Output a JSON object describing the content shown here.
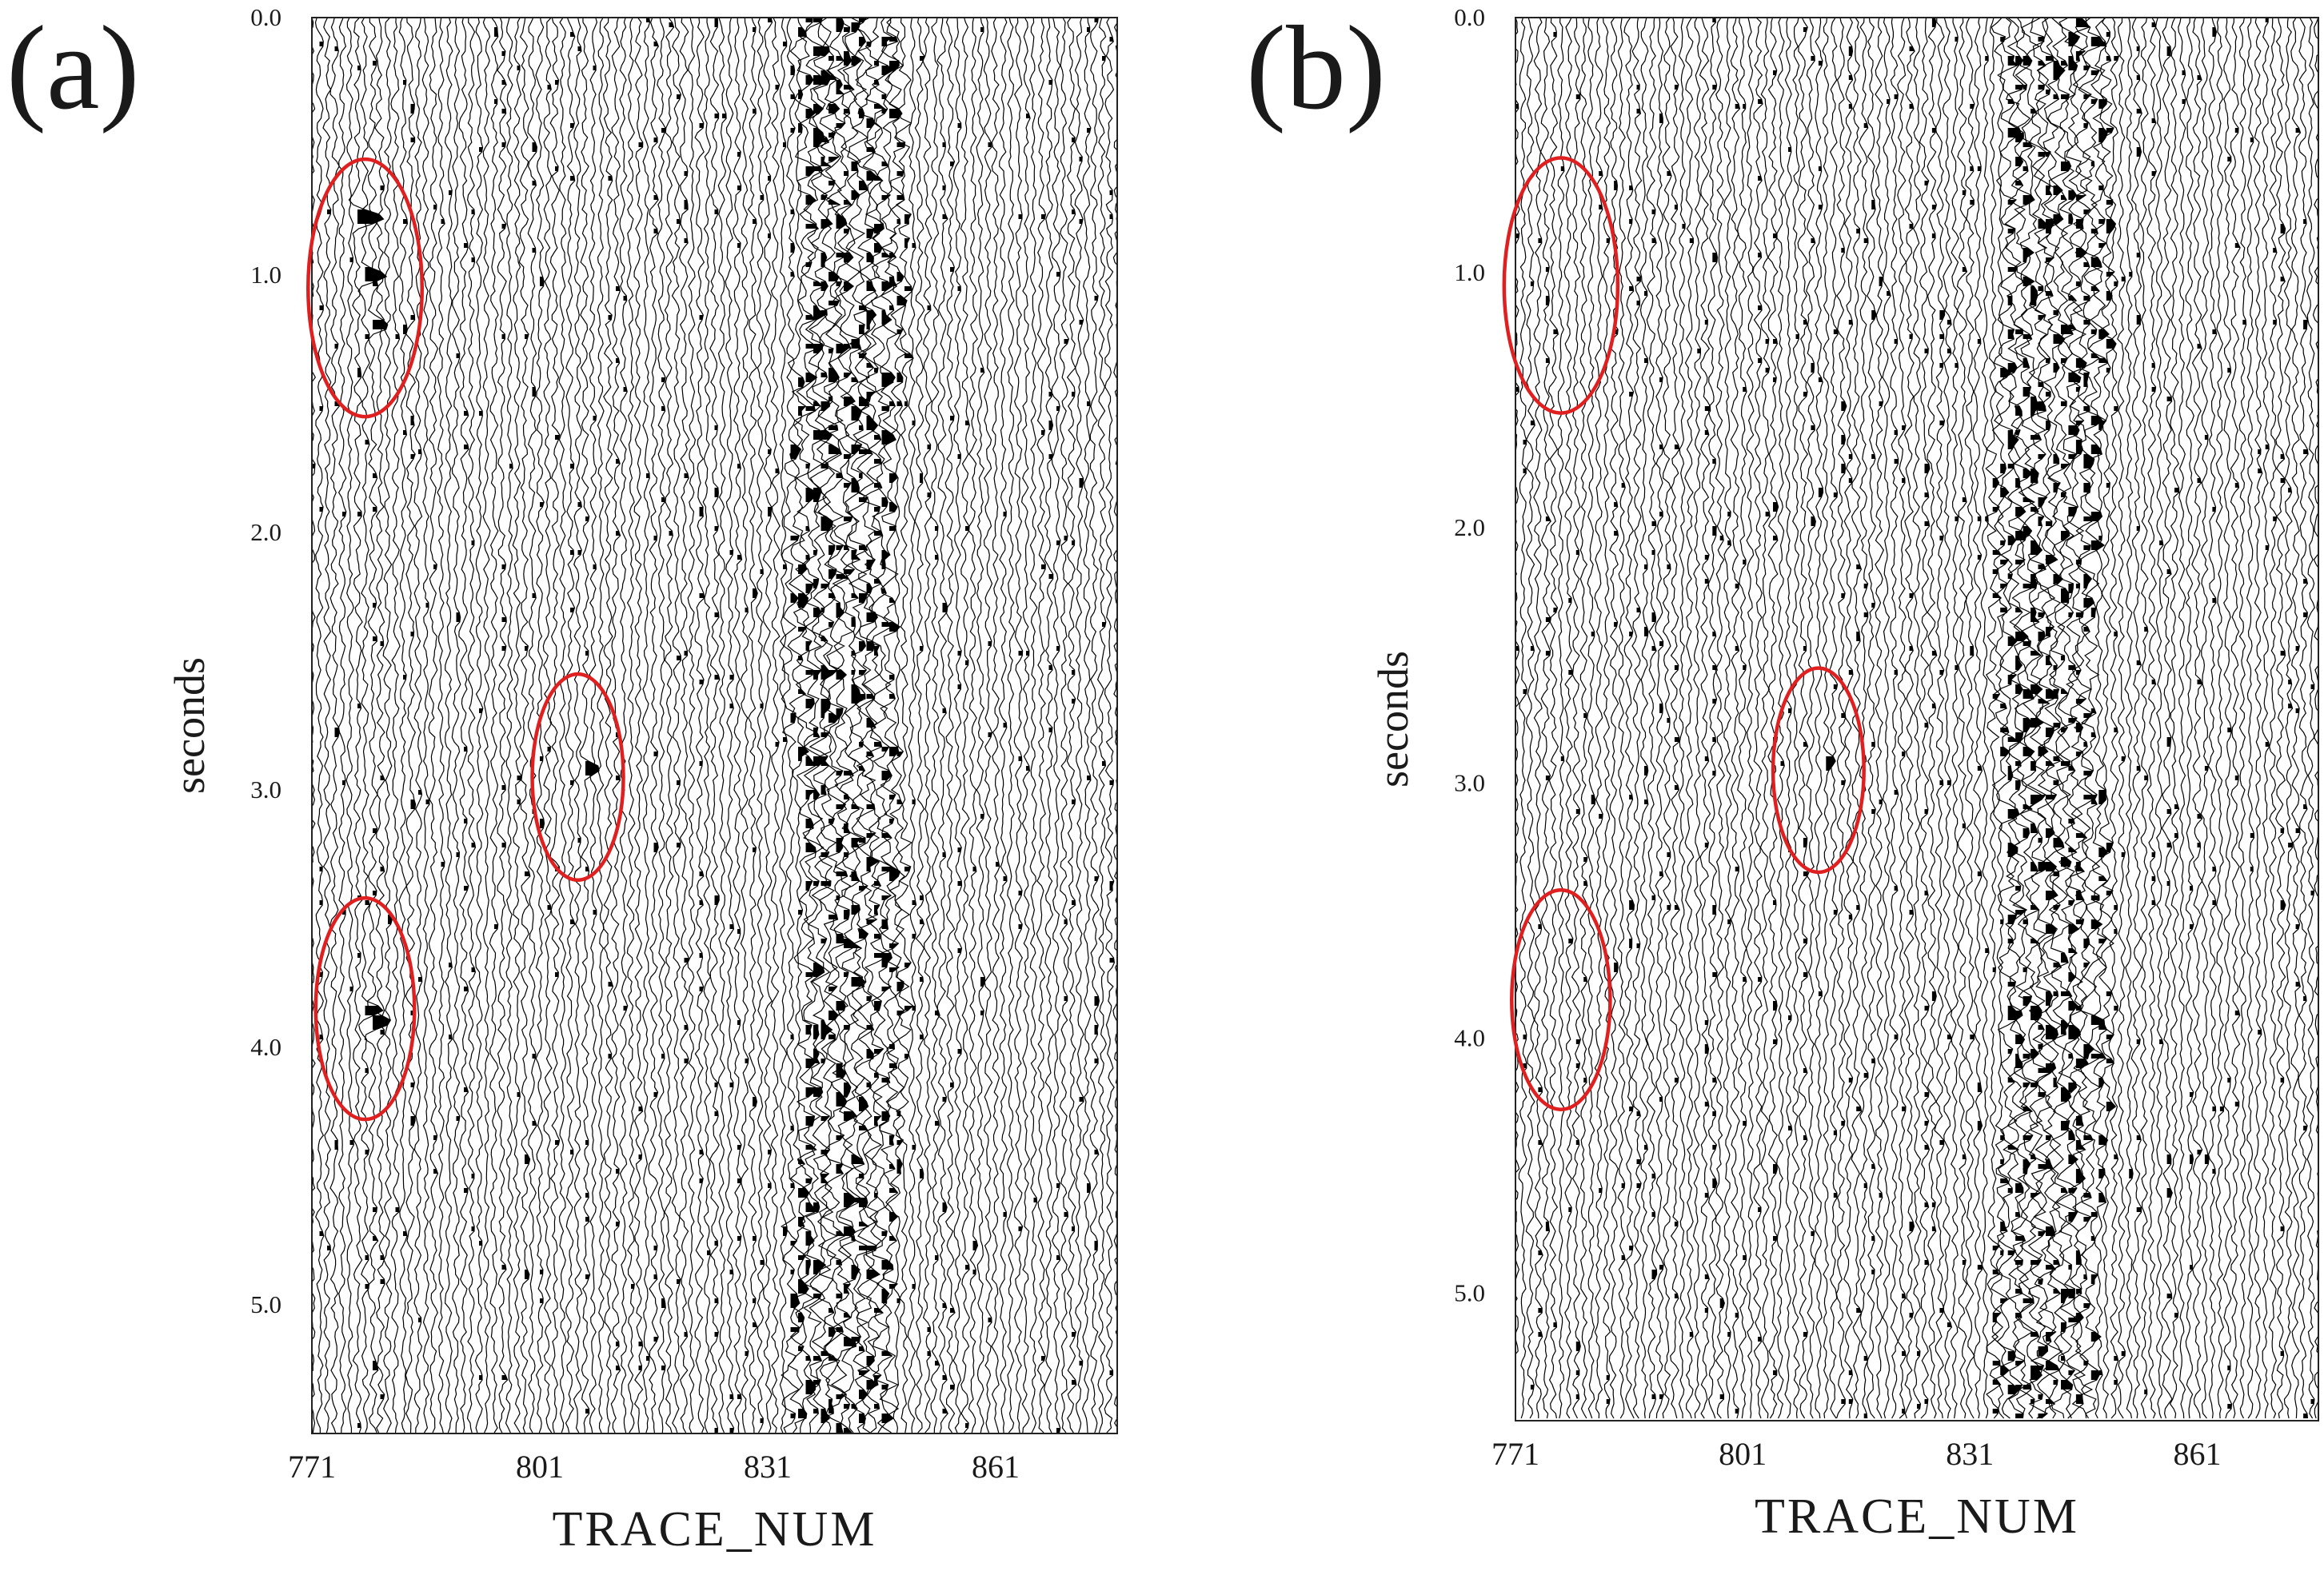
{
  "chart_data": [
    {
      "panel_label": "(a)",
      "type": "seismic-wiggle",
      "xlabel": "TRACE_NUM",
      "ylabel": "seconds",
      "x_ticks": [
        "771",
        "801",
        "831",
        "861"
      ],
      "y_ticks": [
        "0.0",
        "1.0",
        "2.0",
        "3.0",
        "4.0",
        "5.0"
      ],
      "xlim": [
        771,
        877
      ],
      "ylim": [
        0.0,
        5.5
      ],
      "y_inverted": true,
      "dense_noise_band_traces": [
        836,
        847
      ],
      "highlight_color": "#e02020",
      "highlights": [
        {
          "trace_center": 778,
          "time_center": 1.05,
          "trace_halfwidth": 7.5,
          "time_halfwidth": 0.5
        },
        {
          "trace_center": 806,
          "time_center": 2.95,
          "trace_halfwidth": 6,
          "time_halfwidth": 0.4
        },
        {
          "trace_center": 778,
          "time_center": 3.85,
          "trace_halfwidth": 6.5,
          "time_halfwidth": 0.43
        }
      ],
      "strong_events": [
        {
          "trace": 777,
          "time": 0.78,
          "amplitude": 3.5
        },
        {
          "trace": 778,
          "time": 1.0,
          "amplitude": 2.5
        },
        {
          "trace": 779,
          "time": 1.2,
          "amplitude": 2.0
        },
        {
          "trace": 778,
          "time": 3.85,
          "amplitude": 2.2
        },
        {
          "trace": 779,
          "time": 3.9,
          "amplitude": 2.0
        },
        {
          "trace": 807,
          "time": 2.92,
          "amplitude": 2.0
        }
      ]
    },
    {
      "panel_label": "(b)",
      "type": "seismic-wiggle",
      "xlabel": "TRACE_NUM",
      "ylabel": "seconds",
      "x_ticks": [
        "771",
        "801",
        "831",
        "861"
      ],
      "y_ticks": [
        "0.0",
        "1.0",
        "2.0",
        "3.0",
        "4.0",
        "5.0"
      ],
      "xlim": [
        771,
        877
      ],
      "ylim": [
        0.0,
        5.5
      ],
      "y_inverted": true,
      "dense_noise_band_traces": [
        836,
        847
      ],
      "highlight_color": "#e02020",
      "highlights": [
        {
          "trace_center": 777,
          "time_center": 1.05,
          "trace_halfwidth": 7.5,
          "time_halfwidth": 0.5
        },
        {
          "trace_center": 811,
          "time_center": 2.95,
          "trace_halfwidth": 6,
          "time_halfwidth": 0.4
        },
        {
          "trace_center": 777,
          "time_center": 3.85,
          "trace_halfwidth": 6.5,
          "time_halfwidth": 0.43
        }
      ],
      "strong_events": [
        {
          "trace": 812,
          "time": 2.92,
          "amplitude": 1.4
        }
      ]
    }
  ]
}
